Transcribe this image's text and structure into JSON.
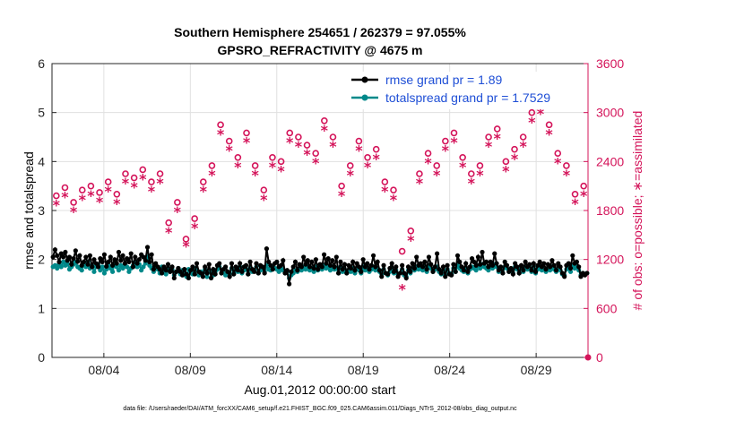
{
  "chart_data": {
    "type": "line",
    "title": "Southern Hemisphere 254651 / 262379 = 97.055%",
    "subtitle": "GPSRO_REFRACTIVITY @ 4675 m",
    "xlabel": "Aug.01,2012 00:00:00 start",
    "ylabel_left": "rmse and totalspread",
    "ylabel_right": "# of obs: o=possible; ∗=assimilated",
    "footer": "data file: /Users/raeder/DAI/ATM_forcXX/CAM6_setup/f.e21.FHIST_BGC.f09_025.CAM6assim.011/Diags_NTrS_2012-08/obs_diag_output.nc",
    "xlim": [
      0,
      31
    ],
    "ylim_left": [
      0,
      6
    ],
    "ylim_right": [
      0,
      3600
    ],
    "x_tick_labels": [
      "08/04",
      "08/09",
      "08/14",
      "08/19",
      "08/24",
      "08/29"
    ],
    "x_tick_values": [
      3,
      8,
      13,
      18,
      23,
      28
    ],
    "y_left_ticks": [
      0,
      1,
      2,
      3,
      4,
      5,
      6
    ],
    "y_right_ticks": [
      0,
      600,
      1200,
      1800,
      2400,
      3000,
      3600
    ],
    "colors": {
      "rmse": "#000000",
      "spread": "#00898a",
      "obs": "#d4145a",
      "legend_text": "#1f4fd6",
      "grid": "#e0e0e0"
    },
    "series": [
      {
        "name": "rmse grand pr = 1.89",
        "axis": "left",
        "values": [
          2.05,
          2.2,
          2.08,
          1.95,
          2.12,
          2.05,
          2.15,
          1.98,
          2.05,
          1.9,
          2.02,
          2.18,
          1.96,
          2.08,
          1.88,
          1.95,
          2.05,
          1.9,
          2.08,
          1.85,
          2.0,
          1.92,
          1.85,
          2.02,
          1.95,
          2.1,
          1.86,
          1.95,
          2.05,
          1.88,
          2.0,
          1.92,
          2.15,
          1.98,
          2.08,
          1.92,
          2.02,
          1.95,
          2.12,
          1.85,
          2.05,
          1.92,
          2.0,
          2.1,
          2.05,
          1.98,
          2.25,
          1.95,
          2.1,
          1.8,
          1.92,
          1.85,
          1.8,
          1.72,
          1.85,
          1.78,
          1.9,
          1.75,
          1.85,
          1.62,
          1.75,
          1.82,
          1.75,
          1.68,
          1.8,
          1.7,
          1.62,
          1.78,
          1.85,
          1.7,
          1.92,
          1.75,
          1.72,
          1.65,
          1.85,
          1.72,
          1.9,
          1.62,
          1.8,
          1.7,
          1.88,
          1.92,
          1.72,
          1.8,
          1.85,
          1.75,
          1.65,
          1.92,
          1.7,
          1.85,
          1.78,
          1.92,
          1.75,
          1.85,
          1.88,
          1.7,
          1.95,
          1.8,
          1.75,
          1.92,
          1.72,
          1.88,
          1.85,
          1.72,
          2.22,
          1.95,
          1.88,
          1.8,
          1.92,
          1.95,
          1.85,
          1.88,
          1.98,
          1.72,
          1.78,
          1.5,
          1.75,
          1.85,
          1.95,
          1.78,
          1.9,
          1.85,
          2.05,
          1.9,
          1.98,
          1.85,
          1.95,
          1.82,
          2.0,
          1.8,
          1.9,
          1.85,
          2.1,
          1.92,
          2.02,
          1.88,
          1.98,
          1.85,
          2.05,
          1.72,
          1.95,
          1.8,
          1.9,
          1.72,
          1.88,
          1.82,
          1.95,
          1.78,
          1.92,
          1.85,
          1.75,
          2.0,
          1.85,
          1.92,
          1.8,
          1.88,
          2.08,
          1.85,
          1.95,
          1.78,
          1.65,
          1.88,
          1.72,
          1.7,
          1.82,
          1.92,
          1.75,
          1.85,
          1.65,
          1.72,
          1.88,
          1.72,
          1.62,
          1.85,
          1.75,
          1.92,
          1.82,
          2.05,
          1.88,
          1.92,
          1.85,
          1.95,
          1.8,
          2.05,
          1.9,
          1.75,
          1.85,
          2.12,
          1.8,
          1.72,
          1.85,
          1.65,
          1.88,
          1.7,
          1.68,
          1.9,
          1.75,
          2.08,
          1.95,
          1.85,
          1.78,
          1.92,
          1.75,
          1.85,
          2.02,
          1.95,
          1.88,
          2.05,
          1.9,
          2.15,
          1.92,
          1.95,
          1.85,
          1.95,
          1.88,
          2.12,
          1.92,
          1.78,
          1.85,
          1.72,
          1.95,
          1.88,
          1.75,
          1.82,
          1.7,
          1.92,
          1.85,
          1.72,
          1.88,
          1.78,
          1.95,
          1.85,
          1.9,
          1.78,
          1.92,
          1.75,
          1.88,
          1.95,
          1.85,
          1.92,
          1.8,
          1.9,
          1.85,
          1.98,
          1.88,
          1.78,
          1.92,
          1.85,
          1.72,
          1.65,
          1.88,
          1.92,
          1.82,
          2.08,
          1.92,
          1.95,
          1.85,
          1.65,
          1.72,
          1.68,
          1.72
        ]
      },
      {
        "name": "totalspread grand pr = 1.7529",
        "axis": "left",
        "values": [
          1.85,
          1.88,
          1.82,
          1.9,
          1.85,
          1.95,
          1.88,
          1.92,
          1.8,
          1.85,
          1.9,
          1.95,
          1.85,
          1.82,
          1.78,
          1.9,
          1.85,
          1.95,
          1.82,
          1.88,
          1.75,
          1.85,
          1.9,
          1.78,
          1.85,
          1.72,
          1.8,
          1.88,
          1.82,
          1.75,
          1.92,
          1.85,
          1.78,
          1.88,
          1.82,
          1.9,
          1.85,
          1.75,
          1.82,
          1.88,
          1.95,
          1.85,
          1.9,
          1.78,
          1.85,
          1.92,
          2.05,
          1.88,
          1.82,
          1.75,
          1.85,
          1.8,
          1.72,
          1.85,
          1.78,
          1.7,
          1.82,
          1.75,
          1.8,
          1.68,
          1.75,
          1.82,
          1.7,
          1.78,
          1.72,
          1.65,
          1.8,
          1.75,
          1.7,
          1.82,
          1.78,
          1.68,
          1.75,
          1.72,
          1.8,
          1.65,
          1.78,
          1.72,
          1.68,
          1.75,
          1.8,
          1.85,
          1.72,
          1.78,
          1.68,
          1.75,
          1.72,
          1.82,
          1.7,
          1.78,
          1.75,
          1.85,
          1.72,
          1.78,
          1.8,
          1.7,
          1.82,
          1.75,
          1.78,
          1.85,
          1.72,
          1.78,
          1.82,
          1.75,
          1.88,
          1.8,
          1.78,
          1.85,
          1.82,
          1.8,
          1.75,
          1.82,
          1.78,
          1.72,
          1.75,
          1.62,
          1.68,
          1.72,
          1.78,
          1.75,
          1.82,
          1.78,
          1.85,
          1.8,
          1.85,
          1.78,
          1.82,
          1.75,
          1.85,
          1.78,
          1.82,
          1.8,
          1.88,
          1.82,
          1.85,
          1.78,
          1.85,
          1.8,
          1.82,
          1.72,
          1.85,
          1.75,
          1.8,
          1.72,
          1.78,
          1.75,
          1.82,
          1.72,
          1.8,
          1.78,
          1.72,
          1.85,
          1.78,
          1.82,
          1.75,
          1.8,
          1.85,
          1.78,
          1.82,
          1.75,
          1.7,
          1.8,
          1.72,
          1.68,
          1.75,
          1.82,
          1.72,
          1.78,
          1.7,
          1.72,
          1.8,
          1.68,
          1.65,
          1.78,
          1.72,
          1.82,
          1.78,
          1.85,
          1.8,
          1.82,
          1.78,
          1.85,
          1.75,
          1.88,
          1.82,
          1.75,
          1.8,
          1.85,
          1.75,
          1.7,
          1.78,
          1.68,
          1.8,
          1.72,
          1.7,
          1.82,
          1.75,
          1.88,
          1.82,
          1.78,
          1.75,
          1.82,
          1.72,
          1.8,
          1.85,
          1.82,
          1.78,
          1.88,
          1.82,
          1.9,
          1.85,
          1.82,
          1.78,
          1.85,
          1.82,
          1.9,
          1.85,
          1.75,
          1.8,
          1.72,
          1.85,
          1.82,
          1.75,
          1.78,
          1.72,
          1.85,
          1.8,
          1.72,
          1.82,
          1.75,
          1.85,
          1.8,
          1.82,
          1.75,
          1.85,
          1.72,
          1.8,
          1.85,
          1.78,
          1.82,
          1.75,
          1.8,
          1.78,
          1.85,
          1.8,
          1.75,
          1.82,
          1.78,
          1.7,
          1.68,
          1.8,
          1.82,
          1.75,
          1.88,
          1.82,
          1.85,
          1.78,
          1.68,
          1.72,
          1.7,
          1.72
        ]
      },
      {
        "name": "obs possible",
        "axis": "right",
        "marker": "o",
        "x": [
          0.25,
          0.75,
          1.25,
          1.75,
          2.25,
          2.75,
          3.25,
          3.75,
          4.25,
          4.75,
          5.25,
          5.75,
          6.25,
          6.75,
          7.25,
          7.75,
          8.25,
          8.75,
          9.25,
          9.75,
          10.25,
          10.75,
          11.25,
          11.75,
          12.25,
          12.75,
          13.25,
          13.75,
          14.25,
          14.75,
          15.25,
          15.75,
          16.25,
          16.75,
          17.25,
          17.75,
          18.25,
          18.75,
          19.25,
          19.75,
          20.25,
          20.75,
          21.25,
          21.75,
          22.25,
          22.75,
          23.25,
          23.75,
          24.25,
          24.75,
          25.25,
          25.75,
          26.25,
          26.75,
          27.25,
          27.75,
          28.25,
          28.75,
          29.25,
          29.75,
          30.25,
          30.75
        ],
        "values": [
          1980,
          2080,
          1900,
          2050,
          2100,
          2020,
          2150,
          2000,
          2250,
          2200,
          2300,
          2150,
          2250,
          1650,
          1900,
          1450,
          1700,
          2150,
          2350,
          2850,
          2650,
          2450,
          2750,
          2350,
          2050,
          2450,
          2400,
          2750,
          2700,
          2600,
          2500,
          2900,
          2700,
          2100,
          2350,
          2650,
          2450,
          2550,
          2150,
          2050,
          1300,
          1550,
          2250,
          2500,
          2350,
          2650,
          2750,
          2450,
          2250,
          2350,
          2700,
          2800,
          2400,
          2550,
          2700,
          3000,
          3100,
          2850,
          2500,
          2350,
          2000,
          2100
        ]
      },
      {
        "name": "obs assimilated",
        "axis": "right",
        "marker": "*",
        "x": [
          0.25,
          0.75,
          1.25,
          1.75,
          2.25,
          2.75,
          3.25,
          3.75,
          4.25,
          4.75,
          5.25,
          5.75,
          6.25,
          6.75,
          7.25,
          7.75,
          8.25,
          8.75,
          9.25,
          9.75,
          10.25,
          10.75,
          11.25,
          11.75,
          12.25,
          12.75,
          13.25,
          13.75,
          14.25,
          14.75,
          15.25,
          15.75,
          16.25,
          16.75,
          17.25,
          17.75,
          18.25,
          18.75,
          19.25,
          19.75,
          20.25,
          20.75,
          21.25,
          21.75,
          22.25,
          22.75,
          23.25,
          23.75,
          24.25,
          24.75,
          25.25,
          25.75,
          26.25,
          26.75,
          27.25,
          27.75,
          28.25,
          28.75,
          29.25,
          29.75,
          30.25,
          30.75
        ],
        "values": [
          1880,
          1980,
          1800,
          1950,
          2000,
          1920,
          2050,
          1900,
          2150,
          2100,
          2200,
          2050,
          2150,
          1550,
          1800,
          1380,
          1600,
          2050,
          2250,
          2750,
          2550,
          2350,
          2650,
          2250,
          1950,
          2350,
          2300,
          2650,
          2600,
          2500,
          2400,
          2800,
          2600,
          2000,
          2250,
          2550,
          2350,
          2450,
          2050,
          1950,
          850,
          1450,
          2150,
          2400,
          2250,
          2550,
          2650,
          2350,
          2150,
          2250,
          2600,
          2700,
          2300,
          2450,
          2600,
          2900,
          3000,
          2750,
          2400,
          2250,
          1900,
          2000
        ]
      }
    ]
  }
}
